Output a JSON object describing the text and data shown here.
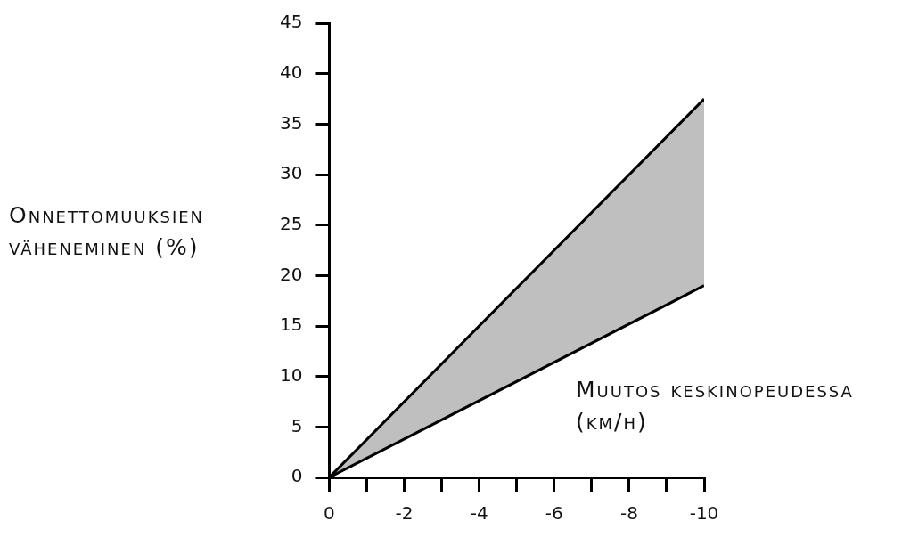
{
  "chart_data": {
    "type": "line",
    "xlabel": "Muutos keskinopeudessa (km/h)",
    "ylabel": "Onnettomuuksien väheneminen (%)",
    "x": [
      0,
      -10
    ],
    "series": [
      {
        "color": "#000000",
        "values": [
          0,
          37.5
        ],
        "lower": [
          0,
          19
        ],
        "upper": [
          0,
          37.5
        ]
      },
      {
        "color": "#000000",
        "values": [
          0,
          19
        ]
      }
    ],
    "xlim": [
      0,
      -10
    ],
    "xticks": [
      0,
      {
        "value": -1,
        "label": null
      },
      -2,
      {
        "value": -3,
        "label": null
      },
      -4,
      {
        "value": -5,
        "label": null
      },
      -6,
      {
        "value": -7,
        "label": null
      },
      -8,
      {
        "value": -9,
        "label": null
      },
      -10
    ],
    "ylim": [
      0,
      45
    ],
    "yticks": [
      0,
      5,
      10,
      15,
      20,
      25,
      30,
      35,
      40,
      45
    ],
    "marker": "none",
    "legend": false,
    "grid": false
  }
}
